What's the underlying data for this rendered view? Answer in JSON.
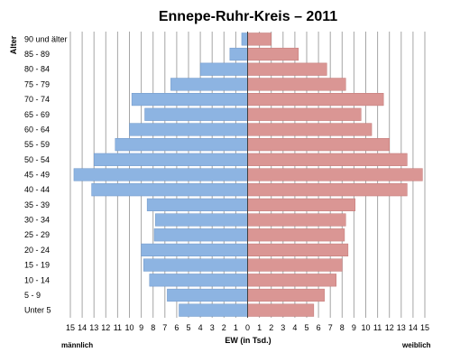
{
  "chart_data": {
    "type": "bar",
    "title": "Ennepe-Ruhr-Kreis – 2011",
    "ylabel": "Alter",
    "xlabel": "EW (in Tsd.)",
    "left_label": "männlich",
    "right_label": "weiblich",
    "xlim": [
      -15,
      15
    ],
    "x_ticks": [
      "15",
      "14",
      "13",
      "12",
      "11",
      "10",
      "9",
      "8",
      "7",
      "6",
      "5",
      "4",
      "3",
      "2",
      "1",
      "0",
      "1",
      "2",
      "3",
      "4",
      "5",
      "6",
      "7",
      "8",
      "9",
      "10",
      "11",
      "12",
      "13",
      "14",
      "15"
    ],
    "grid": true,
    "categories": [
      "90 und älter",
      "85 - 89",
      "80 - 84",
      "75 - 79",
      "70 - 74",
      "65 - 69",
      "60 - 64",
      "55 - 59",
      "50 - 54",
      "45 - 49",
      "40 - 44",
      "35 - 39",
      "30 - 34",
      "25 - 29",
      "20 - 24",
      "15 - 19",
      "10 - 14",
      "5 - 9",
      "Unter 5"
    ],
    "series": [
      {
        "name": "männlich",
        "color": "#8db4e2",
        "values": [
          0.5,
          1.5,
          4.0,
          6.5,
          9.8,
          8.7,
          10.0,
          11.2,
          13.0,
          14.7,
          13.2,
          8.5,
          7.8,
          7.9,
          9.0,
          8.8,
          8.3,
          6.8,
          5.8
        ]
      },
      {
        "name": "weiblich",
        "color": "#da9694",
        "values": [
          2.0,
          4.3,
          6.7,
          8.3,
          11.5,
          9.6,
          10.5,
          12.0,
          13.5,
          14.8,
          13.5,
          9.1,
          8.3,
          8.2,
          8.5,
          8.0,
          7.5,
          6.5,
          5.6
        ]
      }
    ]
  }
}
